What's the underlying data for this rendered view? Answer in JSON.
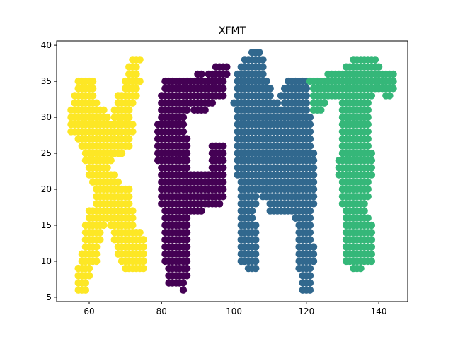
{
  "chart_data": {
    "type": "scatter",
    "title": "XFMT",
    "xlabel": "",
    "ylabel": "",
    "xlim": [
      51,
      148
    ],
    "ylim": [
      4.4,
      40.6
    ],
    "xticks": [
      60,
      80,
      100,
      120,
      140
    ],
    "yticks": [
      5,
      10,
      15,
      20,
      25,
      30,
      35,
      40
    ],
    "grid": false,
    "legend": "none",
    "series": [
      {
        "color": "#fde725",
        "rows": [
          {
            "y": 38,
            "x": [
              72,
              74
            ]
          },
          {
            "y": 37,
            "x": [
              71,
              73
            ]
          },
          {
            "y": 36,
            "x": [
              71,
              73
            ]
          },
          {
            "y": 35,
            "x": [
              57,
              61,
              70,
              74
            ]
          },
          {
            "y": 34,
            "x": [
              57,
              61,
              70,
              73
            ]
          },
          {
            "y": 33,
            "x": [
              56,
              61,
              68,
              73
            ]
          },
          {
            "y": 32,
            "x": [
              56,
              62,
              68,
              72
            ]
          },
          {
            "y": 31,
            "x": [
              55,
              64,
              67,
              71
            ]
          },
          {
            "y": 30,
            "x": [
              55,
              65,
              67,
              71
            ]
          },
          {
            "y": 29,
            "x": [
              55,
              72
            ]
          },
          {
            "y": 28,
            "x": [
              55,
              72
            ]
          },
          {
            "y": 27,
            "x": [
              57,
              71
            ]
          },
          {
            "y": 26,
            "x": [
              58,
              71
            ]
          },
          {
            "y": 25,
            "x": [
              59,
              69
            ]
          },
          {
            "y": 24,
            "x": [
              59,
              66
            ]
          },
          {
            "y": 23,
            "x": [
              60,
              65
            ]
          },
          {
            "y": 22,
            "x": [
              60,
              67
            ]
          },
          {
            "y": 21,
            "x": [
              61,
              68
            ]
          },
          {
            "y": 20,
            "x": [
              62,
              71
            ]
          },
          {
            "y": 19,
            "x": [
              62,
              71
            ]
          },
          {
            "y": 18,
            "x": [
              62,
              71
            ]
          },
          {
            "y": 17,
            "x": [
              60,
              72
            ]
          },
          {
            "y": 16,
            "x": [
              60,
              72
            ]
          },
          {
            "y": 15,
            "x": [
              59,
              64,
              66,
              72
            ]
          },
          {
            "y": 14,
            "x": [
              59,
              63,
              67,
              74
            ]
          },
          {
            "y": 13,
            "x": [
              59,
              63,
              67,
              75
            ]
          },
          {
            "y": 12,
            "x": [
              59,
              62,
              68,
              75
            ]
          },
          {
            "y": 11,
            "x": [
              58,
              62,
              68,
              75
            ]
          },
          {
            "y": 10,
            "x": [
              58,
              62,
              69,
              75
            ]
          },
          {
            "y": 9,
            "x": [
              57,
              60,
              70,
              75
            ]
          },
          {
            "y": 8,
            "x": [
              57,
              60
            ]
          },
          {
            "y": 7,
            "x": [
              57,
              59
            ]
          },
          {
            "y": 6,
            "x": [
              57,
              59
            ]
          }
        ]
      },
      {
        "color": "#440154",
        "rows": [
          {
            "y": 37,
            "x": [
              95,
              98
            ]
          },
          {
            "y": 36,
            "x": [
              90,
              91,
              93,
              98
            ]
          },
          {
            "y": 35,
            "x": [
              81,
              97
            ]
          },
          {
            "y": 34,
            "x": [
              81,
              97
            ]
          },
          {
            "y": 33,
            "x": [
              80,
              97
            ]
          },
          {
            "y": 32,
            "x": [
              80,
              94
            ]
          },
          {
            "y": 31,
            "x": [
              80,
              87,
              89,
              92
            ]
          },
          {
            "y": 30,
            "x": [
              80,
              86
            ]
          },
          {
            "y": 29,
            "x": [
              79,
              86
            ]
          },
          {
            "y": 28,
            "x": [
              79,
              86
            ]
          },
          {
            "y": 27,
            "x": [
              79,
              87
            ]
          },
          {
            "y": 26,
            "x": [
              79,
              87,
              94,
              97
            ]
          },
          {
            "y": 25,
            "x": [
              79,
              87,
              94,
              97
            ]
          },
          {
            "y": 24,
            "x": [
              79,
              87,
              94,
              97
            ]
          },
          {
            "y": 23,
            "x": [
              80,
              87,
              94,
              97
            ]
          },
          {
            "y": 22,
            "x": [
              80,
              97
            ]
          },
          {
            "y": 21,
            "x": [
              80,
              97
            ]
          },
          {
            "y": 20,
            "x": [
              80,
              97
            ]
          },
          {
            "y": 19,
            "x": [
              80,
              97
            ]
          },
          {
            "y": 18,
            "x": [
              80,
              96
            ]
          },
          {
            "y": 17,
            "x": [
              81,
              91
            ]
          },
          {
            "y": 16,
            "x": [
              81,
              87
            ]
          },
          {
            "y": 15,
            "x": [
              81,
              87
            ]
          },
          {
            "y": 14,
            "x": [
              81,
              87
            ]
          },
          {
            "y": 13,
            "x": [
              81,
              87
            ]
          },
          {
            "y": 12,
            "x": [
              81,
              87
            ]
          },
          {
            "y": 11,
            "x": [
              81,
              87
            ]
          },
          {
            "y": 10,
            "x": [
              81,
              87
            ]
          },
          {
            "y": 9,
            "x": [
              82,
              87
            ]
          },
          {
            "y": 8,
            "x": [
              82,
              87
            ]
          },
          {
            "y": 7,
            "x": [
              82,
              86
            ]
          },
          {
            "y": 6,
            "x": [
              86,
              86
            ]
          }
        ]
      },
      {
        "color": "#31688e",
        "rows": [
          {
            "y": 39,
            "x": [
              105,
              107
            ]
          },
          {
            "y": 38,
            "x": [
              103,
              108
            ]
          },
          {
            "y": 37,
            "x": [
              102,
              108
            ]
          },
          {
            "y": 36,
            "x": [
              101,
              108
            ]
          },
          {
            "y": 35,
            "x": [
              101,
              109,
              115,
              120
            ]
          },
          {
            "y": 34,
            "x": [
              101,
              110,
              114,
              120
            ]
          },
          {
            "y": 33,
            "x": [
              101,
              110,
              113,
              120
            ]
          },
          {
            "y": 32,
            "x": [
              100,
              112,
              114,
              120
            ]
          },
          {
            "y": 31,
            "x": [
              101,
              120
            ]
          },
          {
            "y": 30,
            "x": [
              101,
              121
            ]
          },
          {
            "y": 29,
            "x": [
              101,
              121
            ]
          },
          {
            "y": 28,
            "x": [
              101,
              121
            ]
          },
          {
            "y": 27,
            "x": [
              101,
              121
            ]
          },
          {
            "y": 26,
            "x": [
              101,
              121
            ]
          },
          {
            "y": 25,
            "x": [
              101,
              122
            ]
          },
          {
            "y": 24,
            "x": [
              101,
              122
            ]
          },
          {
            "y": 23,
            "x": [
              101,
              122
            ]
          },
          {
            "y": 22,
            "x": [
              101,
              122
            ]
          },
          {
            "y": 21,
            "x": [
              102,
              122
            ]
          },
          {
            "y": 20,
            "x": [
              102,
              122
            ]
          },
          {
            "y": 19,
            "x": [
              102,
              106,
              108,
              122
            ]
          },
          {
            "y": 18,
            "x": [
              102,
              106,
              110,
              122
            ]
          },
          {
            "y": 17,
            "x": [
              102,
              105,
              110,
              121
            ]
          },
          {
            "y": 16,
            "x": [
              102,
              105,
              117,
              121
            ]
          },
          {
            "y": 15,
            "x": [
              102,
              106,
              118,
              121
            ]
          },
          {
            "y": 14,
            "x": [
              102,
              106,
              118,
              121
            ]
          },
          {
            "y": 13,
            "x": [
              102,
              106,
              118,
              121
            ]
          },
          {
            "y": 12,
            "x": [
              102,
              106,
              118,
              122
            ]
          },
          {
            "y": 11,
            "x": [
              102,
              106,
              118,
              122
            ]
          },
          {
            "y": 10,
            "x": [
              102,
              106,
              118,
              122
            ]
          },
          {
            "y": 9,
            "x": [
              104,
              106,
              118,
              121
            ]
          },
          {
            "y": 8,
            "x": [
              119,
              121
            ]
          },
          {
            "y": 7,
            "x": [
              119,
              121
            ]
          },
          {
            "y": 6,
            "x": [
              119,
              121
            ]
          }
        ]
      },
      {
        "color": "#35b779",
        "rows": [
          {
            "y": 38,
            "x": [
              133,
              139
            ]
          },
          {
            "y": 37,
            "x": [
              131,
              140
            ]
          },
          {
            "y": 36,
            "x": [
              126,
              144
            ]
          },
          {
            "y": 35,
            "x": [
              121,
              144
            ]
          },
          {
            "y": 34,
            "x": [
              122,
              144
            ]
          },
          {
            "y": 33,
            "x": [
              122,
              138,
              142,
              143
            ]
          },
          {
            "y": 32,
            "x": [
              122,
              125,
              130,
              137
            ]
          },
          {
            "y": 31,
            "x": [
              122,
              124,
              130,
              137
            ]
          },
          {
            "y": 30,
            "x": [
              130,
              137
            ]
          },
          {
            "y": 29,
            "x": [
              130,
              137
            ]
          },
          {
            "y": 28,
            "x": [
              130,
              137
            ]
          },
          {
            "y": 27,
            "x": [
              130,
              137
            ]
          },
          {
            "y": 26,
            "x": [
              130,
              137
            ]
          },
          {
            "y": 25,
            "x": [
              130,
              138
            ]
          },
          {
            "y": 24,
            "x": [
              129,
              138
            ]
          },
          {
            "y": 23,
            "x": [
              129,
              138
            ]
          },
          {
            "y": 22,
            "x": [
              129,
              138
            ]
          },
          {
            "y": 21,
            "x": [
              130,
              137
            ]
          },
          {
            "y": 20,
            "x": [
              130,
              137
            ]
          },
          {
            "y": 19,
            "x": [
              130,
              137
            ]
          },
          {
            "y": 18,
            "x": [
              130,
              136
            ]
          },
          {
            "y": 17,
            "x": [
              131,
              136
            ]
          },
          {
            "y": 16,
            "x": [
              131,
              137
            ]
          },
          {
            "y": 15,
            "x": [
              131,
              138
            ]
          },
          {
            "y": 14,
            "x": [
              131,
              138
            ]
          },
          {
            "y": 13,
            "x": [
              131,
              138
            ]
          },
          {
            "y": 12,
            "x": [
              131,
              138
            ]
          },
          {
            "y": 11,
            "x": [
              131,
              138
            ]
          },
          {
            "y": 10,
            "x": [
              131,
              138
            ]
          },
          {
            "y": 9,
            "x": [
              133,
              135
            ]
          }
        ]
      }
    ]
  }
}
